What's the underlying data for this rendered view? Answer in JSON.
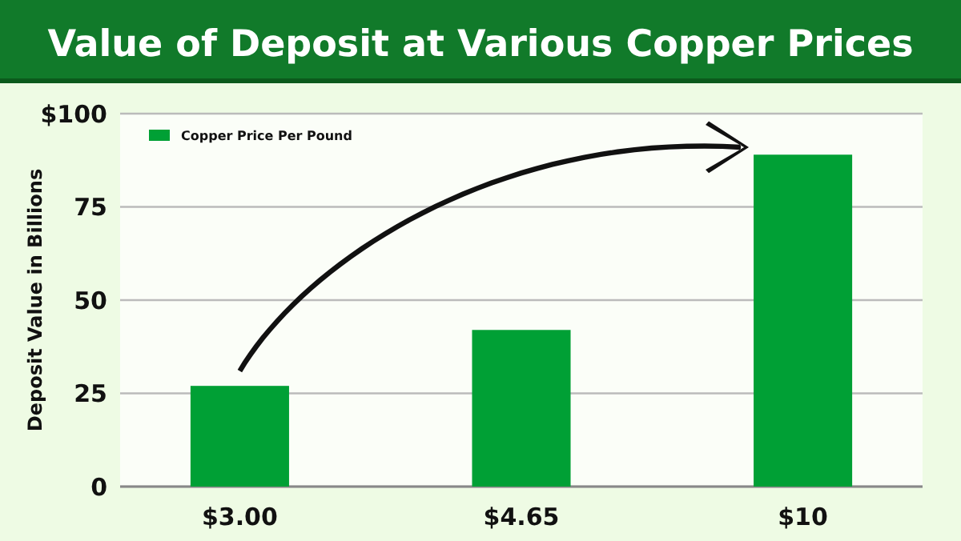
{
  "chart_data": {
    "type": "bar",
    "title": "Value of Deposit at Various Copper Prices",
    "ylabel": "Deposit Value in Billions",
    "categories": [
      "$3.00",
      "$4.65",
      "$10"
    ],
    "series": [
      {
        "name": "Copper Price Per Pound",
        "color": "#00a035",
        "values": [
          27,
          42,
          89
        ]
      }
    ],
    "ylim": [
      0,
      100
    ],
    "yticks": [
      0,
      25,
      50,
      75,
      {
        "value": 100,
        "label": "$100"
      }
    ],
    "grid": "y",
    "legend": "top left"
  }
}
